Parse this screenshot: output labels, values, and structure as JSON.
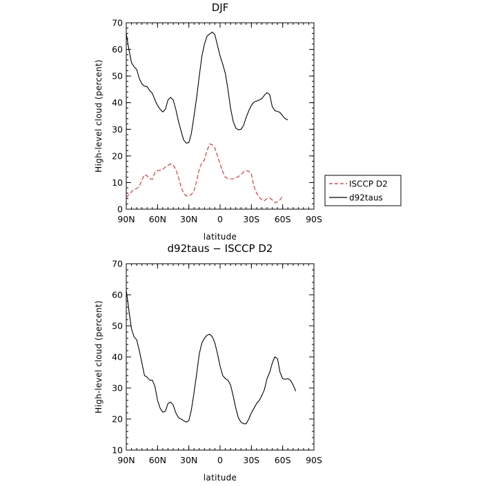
{
  "chart_data": [
    {
      "type": "line",
      "title": "DJF",
      "xlabel": "latitude",
      "ylabel": "High-level cloud (percent)",
      "xlim": [
        90,
        -90
      ],
      "ylim": [
        0,
        70
      ],
      "xticks": [
        90,
        60,
        30,
        0,
        -30,
        -60,
        -90
      ],
      "xtick_labels": [
        "90N",
        "60N",
        "30N",
        "0",
        "30S",
        "60S",
        "90S"
      ],
      "yticks": [
        0,
        10,
        20,
        30,
        40,
        50,
        60,
        70
      ],
      "ytick_labels": [
        "0",
        "10",
        "20",
        "30",
        "40",
        "50",
        "60",
        "70"
      ],
      "legend": "outside-right",
      "grid": false,
      "series": [
        {
          "name": "ISCCP D2",
          "color": "#e8261f",
          "dash": "dashed",
          "points": [
            [
              90,
              4.3
            ],
            [
              87.5,
              5.5
            ],
            [
              85,
              6.5
            ],
            [
              82.5,
              7.5
            ],
            [
              80,
              7.8
            ],
            [
              77.5,
              8.5
            ],
            [
              75,
              11
            ],
            [
              72.5,
              13
            ],
            [
              70,
              12.5
            ],
            [
              67.5,
              11.5
            ],
            [
              65,
              11.2
            ],
            [
              62.5,
              13.8
            ],
            [
              60,
              14.5
            ],
            [
              57.5,
              14.6
            ],
            [
              55,
              15
            ],
            [
              52.5,
              15.8
            ],
            [
              50,
              16.5
            ],
            [
              47.5,
              17
            ],
            [
              45,
              16.5
            ],
            [
              42.5,
              15
            ],
            [
              40,
              12
            ],
            [
              37.5,
              8.5
            ],
            [
              35,
              6
            ],
            [
              32.5,
              5
            ],
            [
              30,
              5
            ],
            [
              27.5,
              5.5
            ],
            [
              25,
              7
            ],
            [
              22.5,
              10.5
            ],
            [
              20,
              15
            ],
            [
              17.5,
              17.5
            ],
            [
              15,
              18.5
            ],
            [
              12.5,
              22
            ],
            [
              10,
              24.5
            ],
            [
              7.5,
              24.2
            ],
            [
              5,
              23
            ],
            [
              2.5,
              20
            ],
            [
              0,
              17
            ],
            [
              -2.5,
              14
            ],
            [
              -5,
              12
            ],
            [
              -7.5,
              11.5
            ],
            [
              -10,
              11.4
            ],
            [
              -12.5,
              11.4
            ],
            [
              -15,
              11.8
            ],
            [
              -17.5,
              12.2
            ],
            [
              -20,
              13
            ],
            [
              -22.5,
              14
            ],
            [
              -25,
              14.5
            ],
            [
              -27.5,
              14.2
            ],
            [
              -30,
              13.2
            ],
            [
              -32.5,
              8.5
            ],
            [
              -35,
              6
            ],
            [
              -37.5,
              4.5
            ],
            [
              -40,
              3.5
            ],
            [
              -42.5,
              3.2
            ],
            [
              -45,
              4
            ],
            [
              -47.5,
              4.2
            ],
            [
              -50,
              3.5
            ],
            [
              -52.5,
              2.5
            ],
            [
              -55,
              2.7
            ],
            [
              -57.5,
              3.5
            ],
            [
              -60,
              5
            ]
          ]
        },
        {
          "name": "d92taus",
          "color": "#000000",
          "dash": "solid",
          "points": [
            [
              90,
              66
            ],
            [
              87.5,
              60
            ],
            [
              85,
              55
            ],
            [
              82.5,
              53.5
            ],
            [
              80,
              52.5
            ],
            [
              77.5,
              49
            ],
            [
              75,
              47
            ],
            [
              72.5,
              46.2
            ],
            [
              70,
              46
            ],
            [
              67.5,
              44.5
            ],
            [
              65,
              43.5
            ],
            [
              62.5,
              41
            ],
            [
              60,
              39
            ],
            [
              57.5,
              37.5
            ],
            [
              55,
              36.5
            ],
            [
              52.5,
              37.5
            ],
            [
              50,
              41
            ],
            [
              47.5,
              42
            ],
            [
              45,
              41
            ],
            [
              42.5,
              37.5
            ],
            [
              40,
              33
            ],
            [
              37.5,
              29.5
            ],
            [
              35,
              26
            ],
            [
              32.5,
              24.8
            ],
            [
              30,
              25
            ],
            [
              27.5,
              28.5
            ],
            [
              25,
              35
            ],
            [
              22.5,
              42
            ],
            [
              20,
              50
            ],
            [
              17.5,
              57.5
            ],
            [
              15,
              62
            ],
            [
              12.5,
              65
            ],
            [
              10,
              65.8
            ],
            [
              7.5,
              66.5
            ],
            [
              5,
              65.5
            ],
            [
              2.5,
              61.5
            ],
            [
              0,
              57.5
            ],
            [
              -2.5,
              54.5
            ],
            [
              -5,
              51
            ],
            [
              -7.5,
              45
            ],
            [
              -10,
              38
            ],
            [
              -12.5,
              33
            ],
            [
              -15,
              30.5
            ],
            [
              -17.5,
              29.8
            ],
            [
              -20,
              30
            ],
            [
              -22.5,
              31.5
            ],
            [
              -25,
              34.5
            ],
            [
              -27.5,
              37
            ],
            [
              -30,
              39
            ],
            [
              -32.5,
              40.2
            ],
            [
              -35,
              40.6
            ],
            [
              -37.5,
              41
            ],
            [
              -40,
              41.5
            ],
            [
              -42.5,
              42.8
            ],
            [
              -45,
              43.8
            ],
            [
              -47.5,
              43
            ],
            [
              -50,
              38.5
            ],
            [
              -52.5,
              37
            ],
            [
              -55,
              36.7
            ],
            [
              -57.5,
              36.3
            ],
            [
              -60,
              35
            ],
            [
              -62.5,
              34
            ],
            [
              -65,
              33.5
            ]
          ]
        }
      ]
    },
    {
      "type": "line",
      "title": "d92taus − ISCCP D2",
      "xlabel": "latitude",
      "ylabel": "High-level cloud (percent)",
      "xlim": [
        90,
        -90
      ],
      "ylim": [
        10,
        70
      ],
      "xticks": [
        90,
        60,
        30,
        0,
        -30,
        -60,
        -90
      ],
      "xtick_labels": [
        "90N",
        "60N",
        "30N",
        "0",
        "30S",
        "60S",
        "90S"
      ],
      "yticks": [
        10,
        20,
        30,
        40,
        50,
        60,
        70
      ],
      "ytick_labels": [
        "10",
        "20",
        "30",
        "40",
        "50",
        "60",
        "70"
      ],
      "grid": false,
      "series": [
        {
          "color": "#000000",
          "dash": "solid",
          "points": [
            [
              90,
              61.5
            ],
            [
              87.5,
              55
            ],
            [
              85,
              49
            ],
            [
              82.5,
              46.5
            ],
            [
              80,
              45.5
            ],
            [
              77.5,
              42
            ],
            [
              75,
              38
            ],
            [
              72.5,
              34
            ],
            [
              70,
              33.5
            ],
            [
              67.5,
              32.5
            ],
            [
              65,
              32.5
            ],
            [
              62.5,
              30.5
            ],
            [
              60,
              26
            ],
            [
              57.5,
              23.5
            ],
            [
              55,
              22.2
            ],
            [
              52.5,
              22.5
            ],
            [
              50,
              25
            ],
            [
              47.5,
              25.5
            ],
            [
              45,
              24.5
            ],
            [
              42.5,
              22
            ],
            [
              40,
              20.5
            ],
            [
              37.5,
              20
            ],
            [
              35,
              19.5
            ],
            [
              32.5,
              19
            ],
            [
              30,
              19.5
            ],
            [
              27.5,
              23
            ],
            [
              25,
              28.5
            ],
            [
              22.5,
              34.5
            ],
            [
              20,
              41
            ],
            [
              17.5,
              44.5
            ],
            [
              15,
              46
            ],
            [
              12.5,
              47
            ],
            [
              10,
              47.3
            ],
            [
              7.5,
              46.5
            ],
            [
              5,
              44.5
            ],
            [
              2.5,
              41
            ],
            [
              0,
              37
            ],
            [
              -2.5,
              34
            ],
            [
              -5,
              33
            ],
            [
              -7.5,
              32.5
            ],
            [
              -10,
              31
            ],
            [
              -12.5,
              27.5
            ],
            [
              -15,
              23.5
            ],
            [
              -17.5,
              20.5
            ],
            [
              -20,
              19
            ],
            [
              -22.5,
              18.5
            ],
            [
              -25,
              18.5
            ],
            [
              -27.5,
              20
            ],
            [
              -30,
              22
            ],
            [
              -32.5,
              23.5
            ],
            [
              -35,
              25
            ],
            [
              -37.5,
              26
            ],
            [
              -40,
              27.5
            ],
            [
              -42.5,
              29.5
            ],
            [
              -45,
              33
            ],
            [
              -47.5,
              35
            ],
            [
              -50,
              38
            ],
            [
              -52.5,
              40
            ],
            [
              -55,
              39.5
            ],
            [
              -57.5,
              35
            ],
            [
              -60,
              33
            ],
            [
              -62.5,
              32.8
            ],
            [
              -65,
              33
            ],
            [
              -67.5,
              32.5
            ],
            [
              -70,
              31
            ],
            [
              -72.5,
              29
            ]
          ]
        }
      ]
    }
  ]
}
